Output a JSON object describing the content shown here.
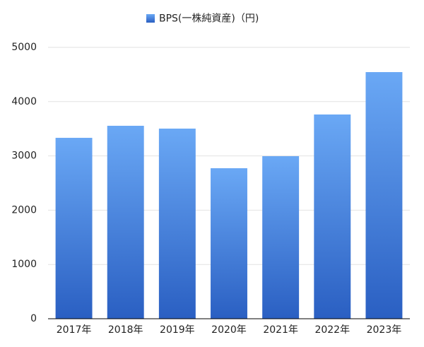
{
  "chart_data": {
    "type": "bar",
    "categories": [
      "2017年",
      "2018年",
      "2019年",
      "2020年",
      "2021年",
      "2022年",
      "2023年"
    ],
    "series": [
      {
        "name": "BPS(一株純資産)（円)",
        "color": [
          "#6aa8f5",
          "#2a5fc2"
        ],
        "values": [
          3333,
          3555,
          3503,
          2773,
          2995,
          3763,
          4544
        ]
      }
    ],
    "ylim": [
      0,
      5000
    ],
    "yticks": [
      0,
      1000,
      2000,
      3000,
      4000,
      5000
    ],
    "grid": true
  }
}
